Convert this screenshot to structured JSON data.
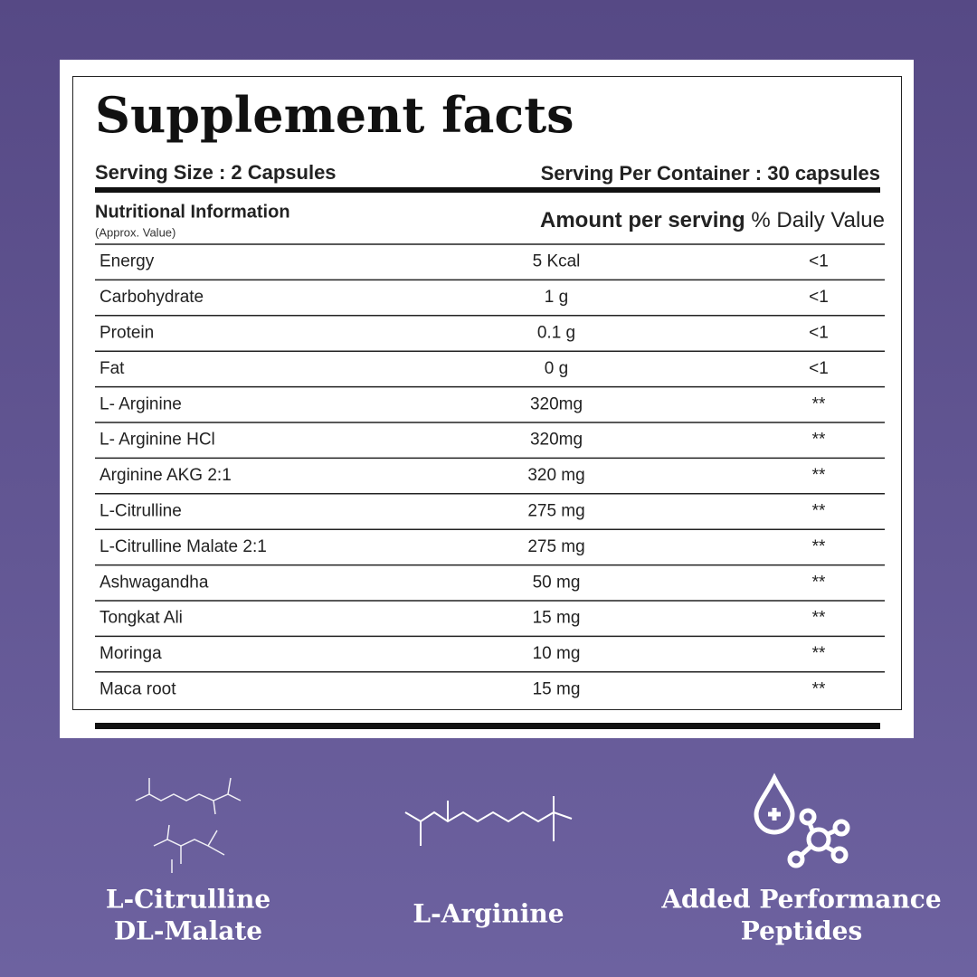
{
  "title": "Supplement facts",
  "serving_size": "Serving Size : 2 Capsules",
  "serving_per_container": "Serving Per Container : 30 capsules",
  "header": {
    "nutritional_information": "Nutritional Information",
    "approx": "(Approx. Value)",
    "amount": "Amount per serving",
    "daily_value": "% Daily Value"
  },
  "rows": [
    [
      "Energy",
      "5 Kcal",
      "<1"
    ],
    [
      "Carbohydrate",
      "1 g",
      "<1"
    ],
    [
      "Protein",
      "0.1 g",
      "<1"
    ],
    [
      "Fat",
      "0 g",
      "<1"
    ],
    [
      "L- Arginine",
      "320mg",
      "**"
    ],
    [
      "L- Arginine HCl",
      "320mg",
      "**"
    ],
    [
      "Arginine AKG 2:1",
      "320 mg",
      "**"
    ],
    [
      "L-Citrulline",
      "275 mg",
      "**"
    ],
    [
      "L-Citrulline Malate 2:1",
      "275 mg",
      "**"
    ],
    [
      "Ashwagandha",
      "50 mg",
      "**"
    ],
    [
      "Tongkat Ali",
      "15 mg",
      "**"
    ],
    [
      "Moringa",
      "10 mg",
      "**"
    ],
    [
      "Maca root",
      "15 mg",
      "**"
    ]
  ],
  "features": [
    [
      "L-Citrulline",
      "DL-Malate"
    ],
    [
      "L-Arginine"
    ],
    [
      "Added Performance",
      "Peptides"
    ]
  ]
}
